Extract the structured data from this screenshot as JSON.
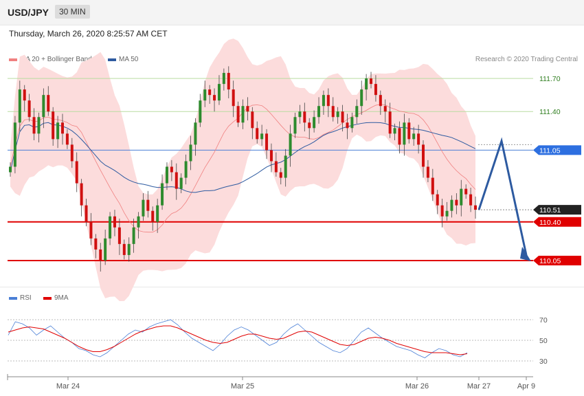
{
  "header": {
    "symbol": "USD/JPY",
    "timeframe": "30 MIN",
    "timestamp": "Thursday, March 26, 2020 8:25:57 AM CET"
  },
  "legend_main": [
    {
      "label": "MA 20 + Bollinger Bands",
      "color": "#f08080"
    },
    {
      "label": "MA 50",
      "color": "#2d5aa0"
    }
  ],
  "legend_rsi": [
    {
      "label": "RSI",
      "color": "#4a7fd6"
    },
    {
      "label": "9MA",
      "color": "#e00000"
    }
  ],
  "credit": "Research © 2020 Trading Central",
  "colors": {
    "bull": "#2e8b2e",
    "bear": "#d01010",
    "band": "#fcdcdc",
    "arrow": "#2d5aa0"
  },
  "chart_data": {
    "type": "candlestick",
    "y_range": [
      109.95,
      111.85
    ],
    "x_ticks": [
      "Mar 24",
      "Mar 25",
      "Mar 26",
      "Mar 27",
      "Apr 9"
    ],
    "levels": [
      {
        "label": "111.70",
        "value": 111.7,
        "kind": "resistance"
      },
      {
        "label": "111.40",
        "value": 111.4,
        "kind": "resistance"
      },
      {
        "label": "111.05",
        "value": 111.05,
        "kind": "pivot"
      },
      {
        "label": "110.51",
        "value": 110.51,
        "kind": "last"
      },
      {
        "label": "110.40",
        "value": 110.4,
        "kind": "support"
      },
      {
        "label": "110.05",
        "value": 110.05,
        "kind": "support"
      }
    ],
    "closes": [
      110.9,
      111.3,
      111.6,
      111.5,
      111.35,
      111.2,
      111.35,
      111.55,
      111.4,
      111.15,
      111.3,
      111.2,
      111.1,
      110.95,
      110.75,
      110.55,
      110.4,
      110.25,
      110.15,
      110.05,
      110.25,
      110.45,
      110.35,
      110.2,
      110.1,
      110.2,
      110.35,
      110.45,
      110.6,
      110.5,
      110.4,
      110.55,
      110.75,
      110.9,
      110.85,
      110.7,
      110.8,
      110.95,
      111.1,
      111.3,
      111.5,
      111.6,
      111.55,
      111.5,
      111.65,
      111.75,
      111.6,
      111.45,
      111.3,
      111.45,
      111.4,
      111.25,
      111.15,
      111.2,
      111.05,
      110.95,
      110.85,
      110.8,
      111.0,
      111.2,
      111.35,
      111.4,
      111.3,
      111.25,
      111.35,
      111.45,
      111.55,
      111.45,
      111.35,
      111.4,
      111.3,
      111.25,
      111.35,
      111.45,
      111.6,
      111.7,
      111.65,
      111.55,
      111.45,
      111.4,
      111.2,
      111.25,
      111.1,
      111.3,
      111.15,
      111.2,
      111.1,
      110.9,
      110.8,
      110.65,
      110.55,
      110.45,
      110.5,
      110.6,
      110.55,
      110.7,
      110.65,
      110.55,
      110.51
    ],
    "rsi": {
      "y_range": [
        20,
        80
      ],
      "levels": [
        70,
        50,
        30
      ],
      "rsi_values": [
        55,
        68,
        66,
        62,
        55,
        60,
        64,
        58,
        52,
        48,
        42,
        40,
        36,
        34,
        38,
        44,
        50,
        56,
        60,
        58,
        63,
        66,
        68,
        70,
        65,
        58,
        52,
        48,
        44,
        40,
        46,
        54,
        60,
        63,
        60,
        55,
        50,
        45,
        48,
        56,
        62,
        66,
        60,
        54,
        48,
        44,
        40,
        38,
        42,
        50,
        58,
        62,
        57,
        52,
        48,
        44,
        42,
        40,
        36,
        33,
        38,
        42,
        40,
        36,
        34,
        38
      ],
      "ma_values": [
        58,
        60,
        62,
        63,
        62,
        61,
        58,
        55,
        52,
        48,
        44,
        41,
        39,
        39,
        41,
        44,
        48,
        52,
        56,
        59,
        61,
        63,
        64,
        64,
        62,
        59,
        56,
        53,
        50,
        48,
        47,
        48,
        51,
        54,
        56,
        56,
        54,
        52,
        51,
        52,
        55,
        58,
        59,
        58,
        55,
        52,
        49,
        46,
        45,
        46,
        49,
        52,
        53,
        52,
        50,
        47,
        45,
        43,
        41,
        39,
        38,
        38,
        38,
        37,
        36,
        37
      ]
    }
  }
}
